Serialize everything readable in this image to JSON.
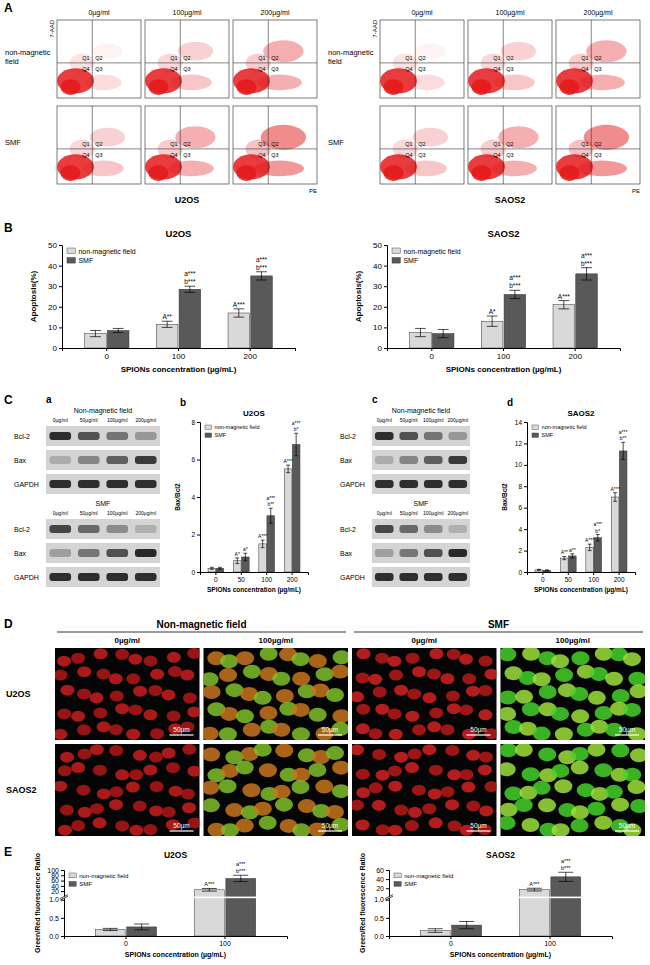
{
  "chart_data": [
    {
      "type": "bar",
      "title": "U2OS",
      "xlabel": "SPIONs concentration (µg/mL)",
      "ylabel": "Apoptosis(%)",
      "categories": [
        "0",
        "100",
        "200"
      ],
      "series": [
        {
          "name": "non-magnetic field",
          "color": "#d9d9d9",
          "values": [
            7,
            11.5,
            17
          ],
          "errors": [
            1.5,
            1.5,
            2
          ],
          "annotations": [
            null,
            [
              "A**"
            ],
            [
              "A***"
            ]
          ]
        },
        {
          "name": "SMF",
          "color": "#595959",
          "values": [
            8.5,
            28.5,
            35
          ],
          "errors": [
            1,
            1.5,
            2
          ],
          "annotations": [
            null,
            [
              "a***",
              "b***"
            ],
            [
              "a***",
              "b***"
            ]
          ]
        }
      ],
      "ylim": [
        0,
        50
      ],
      "yticks": [
        0,
        10,
        20,
        30,
        40,
        50
      ],
      "legend": "upper left"
    },
    {
      "type": "bar",
      "title": "SAOS2",
      "xlabel": "SPIONs concentration (µg/mL)",
      "ylabel": "Apoptosis(%)",
      "categories": [
        "0",
        "100",
        "200"
      ],
      "series": [
        {
          "name": "non-magnetic field",
          "color": "#d9d9d9",
          "values": [
            7.5,
            13,
            21
          ],
          "errors": [
            2,
            2.5,
            2
          ],
          "annotations": [
            null,
            [
              "A*"
            ],
            [
              "A***"
            ]
          ]
        },
        {
          "name": "SMF",
          "color": "#595959",
          "values": [
            7,
            26,
            36
          ],
          "errors": [
            2,
            2,
            3
          ],
          "annotations": [
            null,
            [
              "a***",
              "b***"
            ],
            [
              "a***",
              "b***"
            ]
          ]
        }
      ],
      "ylim": [
        0,
        50
      ],
      "yticks": [
        0,
        10,
        20,
        30,
        40,
        50
      ],
      "legend": "upper left"
    },
    {
      "type": "bar",
      "title": "U2OS",
      "xlabel": "SPIONs concentration (µg/mL)",
      "ylabel": "Bax/Bcl2",
      "categories": [
        "0",
        "50",
        "100",
        "200"
      ],
      "series": [
        {
          "name": "non-magnetic field",
          "color": "#d9d9d9",
          "values": [
            0.2,
            0.6,
            1.5,
            5.5
          ],
          "errors": [
            0.05,
            0.15,
            0.2,
            0.2
          ],
          "annotations": [
            null,
            [
              "A*"
            ],
            [
              "A***"
            ],
            [
              "A***"
            ]
          ]
        },
        {
          "name": "SMF",
          "color": "#595959",
          "values": [
            0.2,
            0.8,
            3.0,
            6.8
          ],
          "errors": [
            0.05,
            0.2,
            0.4,
            0.6
          ],
          "annotations": [
            null,
            [
              "a*"
            ],
            [
              "a***",
              "b**"
            ],
            [
              "a***",
              "b*"
            ]
          ]
        }
      ],
      "ylim": [
        0,
        8
      ],
      "yticks": [
        0,
        2,
        4,
        6,
        8
      ],
      "legend": "upper left"
    },
    {
      "type": "bar",
      "title": "SAOS2",
      "xlabel": "SPIONs concentration (µg/mL)",
      "ylabel": "Bax/Bcl2",
      "categories": [
        "0",
        "50",
        "100",
        "200"
      ],
      "series": [
        {
          "name": "non-magnetic field",
          "color": "#d9d9d9",
          "values": [
            0.2,
            1.3,
            2.3,
            7
          ],
          "errors": [
            0.05,
            0.15,
            0.3,
            0.4
          ],
          "annotations": [
            null,
            [
              "A**"
            ],
            [
              "A***"
            ],
            [
              "A***"
            ]
          ]
        },
        {
          "name": "SMF",
          "color": "#595959",
          "values": [
            0.15,
            1.5,
            3.2,
            11.3
          ],
          "errors": [
            0.05,
            0.2,
            0.3,
            0.8
          ],
          "annotations": [
            null,
            [
              "a**"
            ],
            [
              "a***",
              "b*"
            ],
            [
              "a***",
              "b**"
            ]
          ]
        }
      ],
      "ylim": [
        0,
        14
      ],
      "yticks": [
        0,
        2,
        4,
        6,
        8,
        10,
        12,
        14
      ],
      "legend": "upper left"
    },
    {
      "type": "bar",
      "title": "U2OS",
      "xlabel": "SPIONs concentration (µg/mL)",
      "ylabel": "Green/Red fluorescence Ratio",
      "categories": [
        "0",
        "100"
      ],
      "series": [
        {
          "name": "non-magnetic field",
          "color": "#d9d9d9",
          "values": [
            0.18,
            25
          ],
          "errors": [
            0.03,
            5
          ],
          "annotations": [
            null,
            [
              "A***"
            ]
          ]
        },
        {
          "name": "SMF",
          "color": "#595959",
          "values": [
            0.25,
            68
          ],
          "errors": [
            0.08,
            12
          ],
          "annotations": [
            null,
            [
              "a***",
              "b***"
            ]
          ]
        }
      ],
      "ylim": [
        0,
        100
      ],
      "axis_break": [
        1,
        5
      ],
      "yticks": [
        {
          "value": 0,
          "label": "0.0"
        },
        {
          "value": 0.5,
          "label": "0.5"
        },
        {
          "value": 1,
          "label": "1.0"
        },
        20,
        40,
        60,
        80,
        100
      ],
      "legend": "upper left"
    },
    {
      "type": "bar",
      "title": "SAOS2",
      "xlabel": "SPIONs concentration (µg/mL)",
      "ylabel": "Green/Red fluorescence Ratio",
      "categories": [
        "0",
        "100"
      ],
      "series": [
        {
          "name": "non-magnetic field",
          "color": "#d9d9d9",
          "values": [
            0.15,
            17
          ],
          "errors": [
            0.05,
            3
          ],
          "annotations": [
            null,
            [
              "A***"
            ]
          ]
        },
        {
          "name": "SMF",
          "color": "#595959",
          "values": [
            0.3,
            45
          ],
          "errors": [
            0.1,
            10
          ],
          "annotations": [
            null,
            [
              "a***",
              "b***"
            ]
          ]
        }
      ],
      "ylim": [
        0,
        60
      ],
      "axis_break": [
        1,
        5
      ],
      "yticks": [
        {
          "value": 0,
          "label": "0.0"
        },
        {
          "value": 0.5,
          "label": "0.5"
        },
        {
          "value": 1,
          "label": "1.0"
        },
        20,
        40,
        60
      ],
      "legend": "upper left"
    }
  ],
  "figure": {
    "panel_labels": [
      "A",
      "B",
      "C",
      "D",
      "E"
    ],
    "flow": [
      {
        "title": "U2OS",
        "columns": [
          "0µg/ml",
          "100µg/ml",
          "200µg/ml"
        ],
        "rows": [
          "non-magnetic field",
          "SMF"
        ],
        "y_label": "7-AAD",
        "x_label": "PE",
        "quadrants": [
          "Q1",
          "Q2",
          "Q3",
          "Q4"
        ]
      },
      {
        "title": "SAOS2",
        "columns": [
          "0µg/ml",
          "100µg/ml",
          "200µg/ml"
        ],
        "rows": [
          "non-magnetic field",
          "SMF"
        ],
        "y_label": "7-AAD",
        "x_label": "PE",
        "quadrants": [
          "Q1",
          "Q2",
          "Q3",
          "Q4"
        ]
      }
    ],
    "blots": [
      {
        "sub_label": "a",
        "rows": [
          "Bcl-2",
          "Bax",
          "GAPDH"
        ],
        "groups": [
          {
            "title": "Non-magnetic field",
            "lanes": [
              "0µg/ml",
              "50µg/ml",
              "100µg/ml",
              "200µg/ml"
            ]
          },
          {
            "title": "SMF",
            "lanes": [
              "0µg/ml",
              "50µg/ml",
              "100µg/ml",
              "200µg/ml"
            ]
          }
        ]
      },
      {
        "sub_label": "c",
        "rows": [
          "Bcl-2",
          "Bax",
          "GAPDH"
        ],
        "groups": [
          {
            "title": "Non-magnetic field",
            "lanes": [
              "0µg/ml",
              "50µg/ml",
              "100µg/ml",
              "200µg/ml"
            ]
          },
          {
            "title": "SMF",
            "lanes": [
              "0µg/ml",
              "50µg/ml",
              "100µg/ml",
              "200µg/ml"
            ]
          }
        ]
      }
    ],
    "chart_sub_labels": [
      "b",
      "d"
    ],
    "images": {
      "groups": [
        "Non-magnetic field",
        "SMF"
      ],
      "columns": [
        "0µg/ml",
        "100µg/ml",
        "0µg/ml",
        "100µg/ml"
      ],
      "rows": [
        "U2OS",
        "SAOS2"
      ],
      "scale_bar": "50µm"
    }
  }
}
